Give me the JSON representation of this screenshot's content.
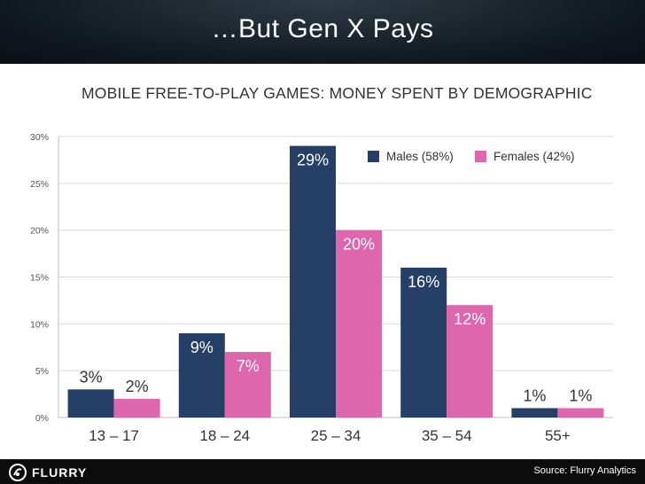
{
  "slide": {
    "title": "…But Gen X Pays",
    "source": "Source: Flurry Analytics",
    "logo_text": "FLURRY"
  },
  "chart_data": {
    "type": "bar",
    "title": "MOBILE FREE-TO-PLAY GAMES: MONEY SPENT BY DEMOGRAPHIC",
    "categories": [
      "13 – 17",
      "18 – 24",
      "25 – 34",
      "35 – 54",
      "55+"
    ],
    "series": [
      {
        "name": "Males (58%)",
        "values": [
          3,
          9,
          29,
          16,
          1
        ],
        "labels": [
          "3%",
          "9%",
          "29%",
          "16%",
          "1%"
        ],
        "color": "#253f66"
      },
      {
        "name": "Females (42%)",
        "values": [
          2,
          7,
          20,
          12,
          1
        ],
        "labels": [
          "2%",
          "7%",
          "20%",
          "12%",
          "1%"
        ],
        "color": "#dd66ac"
      }
    ],
    "ylim": [
      0,
      30
    ],
    "yticks": [
      0,
      5,
      10,
      15,
      20,
      25,
      30
    ],
    "ytick_labels": [
      "0%",
      "5%",
      "10%",
      "15%",
      "20%",
      "25%",
      "30%"
    ],
    "grid": true,
    "legend_position": "top-right"
  }
}
